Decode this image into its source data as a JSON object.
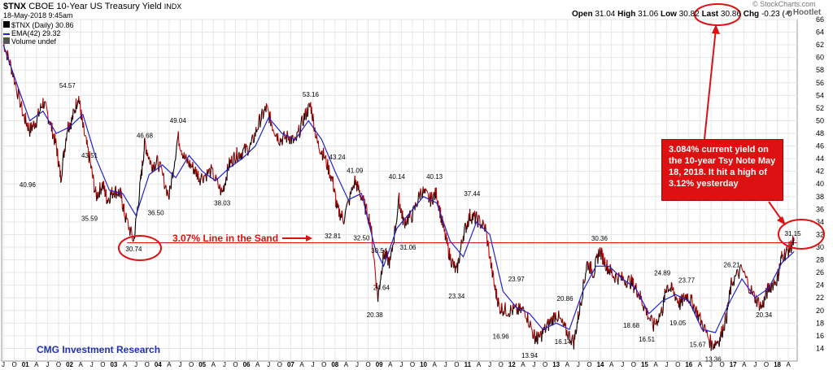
{
  "header": {
    "symbol": "$TNX",
    "name": "CBOE 10-Year US Treasury Yield",
    "exchange": "INDX",
    "date_time": "18-May-2018 9:45am",
    "open_label": "Open",
    "open": "31.04",
    "high_label": "High",
    "high": "31.06",
    "low_label": "Low",
    "low": "30.82",
    "last_label": "Last",
    "last": "30.86",
    "chg_label": "Chg",
    "chg": "-0.23 (-0",
    "watermark": "© StockCharts.com",
    "hootlet": "Hootlet"
  },
  "legend": {
    "price": "$TNX (Daily) 30.86",
    "ema": "EMA(42) 29.32",
    "volume": "Volume undef"
  },
  "annotations": {
    "sand_label": "3.07% Line in the Sand",
    "box_text": "3.084% current yield on the 10-year Tsy Note May 18, 2018.  It hit a high of 3.12% yesterday",
    "footer": "CMG Investment Research"
  },
  "colors": {
    "price_up": "#000000",
    "price_down": "#cc0000",
    "ema": "#2222cc",
    "annotation_red": "#dd1111",
    "grid": "#e6e6e6",
    "footer_blue": "#2233aa"
  },
  "chart_data": {
    "type": "line",
    "title": "$TNX CBOE 10-Year US Treasury Yield INDX",
    "ylim": [
      12,
      66
    ],
    "y_ticks": [
      14,
      16,
      18,
      20,
      22,
      24,
      26,
      28,
      30,
      32,
      34,
      36,
      38,
      40,
      42,
      44,
      46,
      48,
      50,
      52,
      54,
      56,
      58,
      60,
      62,
      64,
      66
    ],
    "x_tick_labels": [
      "J",
      "O",
      "01",
      "A",
      "J",
      "O",
      "02",
      "A",
      "J",
      "O",
      "03",
      "A",
      "J",
      "O",
      "04",
      "A",
      "J",
      "O",
      "05",
      "A",
      "J",
      "O",
      "06",
      "A",
      "J",
      "O",
      "07",
      "A",
      "J",
      "O",
      "08",
      "A",
      "J",
      "O",
      "09",
      "A",
      "J",
      "O",
      "10",
      "A",
      "J",
      "O",
      "11",
      "A",
      "J",
      "O",
      "12",
      "A",
      "J",
      "O",
      "13",
      "A",
      "J",
      "O",
      "14",
      "A",
      "J",
      "O",
      "15",
      "A",
      "J",
      "O",
      "16",
      "A",
      "J",
      "O",
      "17",
      "A",
      "J",
      "O",
      "18",
      "A"
    ],
    "x_start": 2000.5,
    "x_end": 2018.45,
    "series": [
      {
        "name": "$TNX",
        "x": [
          2000.5,
          2000.7,
          2000.95,
          2001.1,
          2001.25,
          2001.4,
          2001.55,
          2001.7,
          2001.8,
          2001.95,
          2002.05,
          2002.2,
          2002.3,
          2002.45,
          2002.6,
          2002.75,
          2002.85,
          2003.0,
          2003.15,
          2003.25,
          2003.45,
          2003.6,
          2003.7,
          2003.85,
          2004.0,
          2004.25,
          2004.45,
          2004.6,
          2004.8,
          2004.95,
          2005.2,
          2005.45,
          2005.6,
          2005.75,
          2005.9,
          2006.1,
          2006.3,
          2006.45,
          2006.6,
          2006.75,
          2006.95,
          2007.1,
          2007.3,
          2007.45,
          2007.6,
          2007.75,
          2007.95,
          2008.05,
          2008.2,
          2008.45,
          2008.6,
          2008.8,
          2008.97,
          2009.1,
          2009.25,
          2009.45,
          2009.55,
          2009.75,
          2009.95,
          2010.15,
          2010.3,
          2010.45,
          2010.6,
          2010.75,
          2010.9,
          2011.05,
          2011.2,
          2011.4,
          2011.6,
          2011.72,
          2011.9,
          2012.1,
          2012.3,
          2012.5,
          2012.6,
          2012.8,
          2013.0,
          2013.2,
          2013.4,
          2013.55,
          2013.7,
          2013.85,
          2013.98,
          2014.15,
          2014.3,
          2014.5,
          2014.7,
          2014.85,
          2015.0,
          2015.2,
          2015.4,
          2015.5,
          2015.65,
          2015.8,
          2015.95,
          2016.1,
          2016.3,
          2016.52,
          2016.7,
          2016.85,
          2016.97,
          2017.2,
          2017.45,
          2017.65,
          2017.8,
          2018.0,
          2018.1,
          2018.25,
          2018.38
        ],
        "y": [
          62.5,
          58.0,
          51.0,
          48.5,
          50.0,
          53.0,
          50.0,
          46.0,
          41.0,
          49.0,
          50.0,
          54.0,
          49.0,
          44.0,
          38.0,
          40.0,
          37.5,
          39.0,
          38.5,
          35.0,
          31.0,
          40.0,
          46.5,
          43.0,
          43.5,
          38.0,
          47.5,
          44.0,
          42.5,
          41.0,
          42.0,
          38.5,
          43.0,
          44.5,
          45.0,
          46.0,
          50.0,
          52.0,
          49.0,
          47.0,
          47.5,
          46.5,
          50.5,
          52.5,
          46.5,
          44.5,
          40.5,
          36.0,
          34.5,
          40.5,
          38.0,
          34.0,
          22.0,
          29.0,
          27.5,
          37.5,
          34.0,
          35.0,
          39.0,
          37.5,
          38.5,
          33.0,
          28.5,
          26.0,
          32.0,
          35.0,
          34.5,
          33.0,
          24.0,
          20.5,
          20.0,
          20.0,
          20.0,
          16.0,
          15.5,
          17.5,
          19.5,
          17.0,
          15.0,
          21.0,
          27.5,
          26.0,
          29.5,
          27.0,
          25.5,
          25.0,
          24.5,
          23.0,
          20.5,
          17.5,
          20.0,
          24.0,
          23.0,
          21.0,
          22.5,
          21.0,
          18.0,
          14.5,
          15.5,
          19.0,
          24.5,
          26.5,
          22.5,
          20.5,
          23.5,
          25.0,
          28.5,
          29.5,
          31.0
        ]
      },
      {
        "name": "EMA(42)",
        "x": [
          2000.5,
          2000.8,
          2001.1,
          2001.4,
          2001.7,
          2002.0,
          2002.3,
          2002.6,
          2002.9,
          2003.2,
          2003.5,
          2003.8,
          2004.1,
          2004.4,
          2004.7,
          2005.0,
          2005.3,
          2005.6,
          2005.9,
          2006.2,
          2006.5,
          2006.8,
          2007.1,
          2007.4,
          2007.7,
          2008.0,
          2008.3,
          2008.6,
          2008.9,
          2009.1,
          2009.4,
          2009.7,
          2010.0,
          2010.3,
          2010.6,
          2010.9,
          2011.2,
          2011.5,
          2011.8,
          2012.1,
          2012.4,
          2012.7,
          2013.0,
          2013.3,
          2013.6,
          2013.9,
          2014.2,
          2014.5,
          2014.8,
          2015.1,
          2015.4,
          2015.7,
          2016.0,
          2016.3,
          2016.6,
          2016.9,
          2017.2,
          2017.5,
          2017.8,
          2018.1,
          2018.38
        ],
        "y": [
          62.0,
          56.0,
          50.0,
          51.5,
          48.0,
          49.0,
          51.0,
          44.0,
          39.0,
          38.5,
          35.0,
          41.5,
          43.0,
          41.0,
          44.5,
          42.0,
          40.5,
          42.5,
          44.0,
          46.0,
          50.5,
          48.0,
          47.0,
          50.0,
          47.0,
          42.0,
          37.5,
          38.5,
          30.0,
          27.0,
          33.0,
          35.5,
          38.0,
          37.0,
          31.0,
          28.5,
          34.0,
          32.0,
          23.0,
          20.5,
          19.5,
          17.0,
          18.0,
          17.0,
          23.0,
          27.0,
          27.0,
          25.0,
          23.5,
          19.5,
          21.5,
          22.5,
          21.5,
          17.0,
          16.5,
          21.0,
          25.0,
          22.0,
          23.5,
          27.5,
          29.3
        ]
      }
    ],
    "data_labels": [
      {
        "x": 2001.95,
        "y": 54.57,
        "text": "54.57"
      },
      {
        "x": 2001.05,
        "y": 40.96,
        "text": "40.96"
      },
      {
        "x": 2002.45,
        "y": 43.51,
        "text": "43.51"
      },
      {
        "x": 2002.45,
        "y": 35.59,
        "text": "35.59"
      },
      {
        "x": 2003.45,
        "y": 30.74,
        "text": "30.74"
      },
      {
        "x": 2003.7,
        "y": 46.68,
        "text": "46.68"
      },
      {
        "x": 2003.95,
        "y": 36.5,
        "text": "36.50"
      },
      {
        "x": 2004.45,
        "y": 49.04,
        "text": "49.04"
      },
      {
        "x": 2005.45,
        "y": 38.03,
        "text": "38.03"
      },
      {
        "x": 2007.45,
        "y": 53.16,
        "text": "53.16"
      },
      {
        "x": 2008.05,
        "y": 43.24,
        "text": "43.24"
      },
      {
        "x": 2008.45,
        "y": 41.09,
        "text": "41.09"
      },
      {
        "x": 2007.95,
        "y": 32.81,
        "text": "32.81"
      },
      {
        "x": 2008.6,
        "y": 32.5,
        "text": "32.50"
      },
      {
        "x": 2009.0,
        "y": 30.54,
        "text": "30.54"
      },
      {
        "x": 2009.05,
        "y": 24.64,
        "text": "24.64"
      },
      {
        "x": 2008.9,
        "y": 20.38,
        "text": "20.38"
      },
      {
        "x": 2009.4,
        "y": 40.14,
        "text": "40.14"
      },
      {
        "x": 2009.65,
        "y": 31.06,
        "text": "31.06"
      },
      {
        "x": 2010.25,
        "y": 40.13,
        "text": "40.13"
      },
      {
        "x": 2011.1,
        "y": 37.44,
        "text": "37.44"
      },
      {
        "x": 2010.75,
        "y": 23.34,
        "text": "23.34"
      },
      {
        "x": 2011.75,
        "y": 16.96,
        "text": "16.96"
      },
      {
        "x": 2012.1,
        "y": 23.97,
        "text": "23.97"
      },
      {
        "x": 2012.4,
        "y": 13.94,
        "text": "13.94"
      },
      {
        "x": 2013.2,
        "y": 20.86,
        "text": "20.86"
      },
      {
        "x": 2013.15,
        "y": 16.14,
        "text": "16.14"
      },
      {
        "x": 2013.98,
        "y": 30.36,
        "text": "30.36"
      },
      {
        "x": 2014.7,
        "y": 18.68,
        "text": "18.68"
      },
      {
        "x": 2015.05,
        "y": 16.51,
        "text": "16.51"
      },
      {
        "x": 2015.4,
        "y": 24.89,
        "text": "24.89"
      },
      {
        "x": 2015.75,
        "y": 19.05,
        "text": "19.05"
      },
      {
        "x": 2015.95,
        "y": 23.77,
        "text": "23.77"
      },
      {
        "x": 2016.2,
        "y": 15.67,
        "text": "15.67"
      },
      {
        "x": 2016.55,
        "y": 13.36,
        "text": "13.36"
      },
      {
        "x": 2016.97,
        "y": 26.21,
        "text": "26.21"
      },
      {
        "x": 2017.7,
        "y": 20.34,
        "text": "20.34"
      },
      {
        "x": 2018.35,
        "y": 31.15,
        "text": "31.15"
      }
    ],
    "reference_line": 30.7,
    "grid": true,
    "legend_position": "top-left"
  }
}
